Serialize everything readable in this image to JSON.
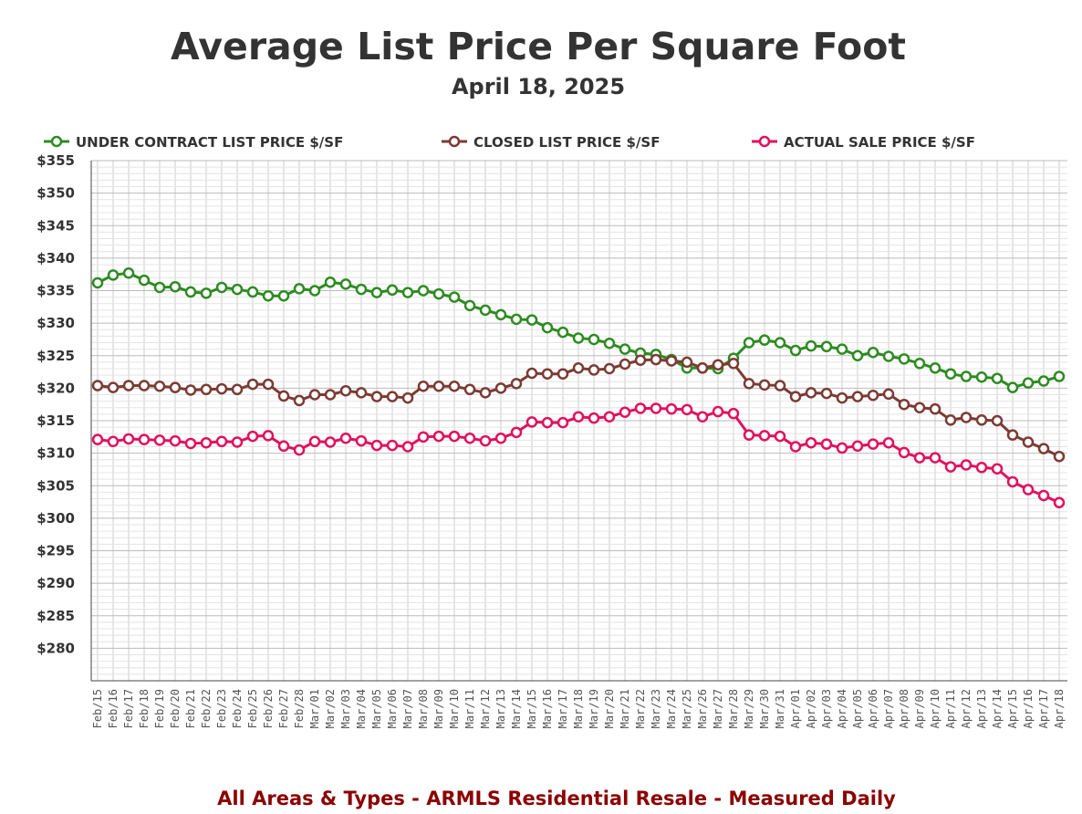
{
  "chart_data": {
    "type": "line",
    "title": "Average List Price Per Square Foot",
    "subtitle": "April 18, 2025",
    "footer": "All Areas & Types - ARMLS Residential Resale - Measured Daily",
    "footer_color": "#8b0000",
    "ylim": [
      275,
      355
    ],
    "yticks": [
      "$355",
      "$350",
      "$345",
      "$340",
      "$335",
      "$330",
      "$325",
      "$320",
      "$315",
      "$310",
      "$305",
      "$300",
      "$295",
      "$290",
      "$285",
      "$280"
    ],
    "ytick_values": [
      355,
      350,
      345,
      340,
      335,
      330,
      325,
      320,
      315,
      310,
      305,
      300,
      295,
      290,
      285,
      280
    ],
    "grid": true,
    "legend_position": "top",
    "categories": [
      "Feb/15",
      "Feb/16",
      "Feb/17",
      "Feb/18",
      "Feb/19",
      "Feb/20",
      "Feb/21",
      "Feb/22",
      "Feb/23",
      "Feb/24",
      "Feb/25",
      "Feb/26",
      "Feb/27",
      "Feb/28",
      "Mar/01",
      "Mar/02",
      "Mar/03",
      "Mar/04",
      "Mar/05",
      "Mar/06",
      "Mar/07",
      "Mar/08",
      "Mar/09",
      "Mar/10",
      "Mar/11",
      "Mar/12",
      "Mar/13",
      "Mar/14",
      "Mar/15",
      "Mar/16",
      "Mar/17",
      "Mar/18",
      "Mar/19",
      "Mar/20",
      "Mar/21",
      "Mar/22",
      "Mar/23",
      "Mar/24",
      "Mar/25",
      "Mar/26",
      "Mar/27",
      "Mar/28",
      "Mar/29",
      "Mar/30",
      "Mar/31",
      "Apr/01",
      "Apr/02",
      "Apr/03",
      "Apr/04",
      "Apr/05",
      "Apr/06",
      "Apr/07",
      "Apr/08",
      "Apr/09",
      "Apr/10",
      "Apr/11",
      "Apr/12",
      "Apr/13",
      "Apr/14",
      "Apr/15",
      "Apr/16",
      "Apr/17",
      "Apr/18"
    ],
    "series": [
      {
        "name": "UNDER CONTRACT LIST PRICE $/SF",
        "color": "#2e8b22",
        "values": [
          336.2,
          337.4,
          337.7,
          336.6,
          335.5,
          335.6,
          334.8,
          334.6,
          335.5,
          335.2,
          334.8,
          334.2,
          334.2,
          335.3,
          335.0,
          336.3,
          336.0,
          335.2,
          334.7,
          335.1,
          334.7,
          335.0,
          334.5,
          334.0,
          332.7,
          332.0,
          331.3,
          330.6,
          330.5,
          329.3,
          328.6,
          327.7,
          327.5,
          326.9,
          326.0,
          325.4,
          325.2,
          324.4,
          323.1,
          323.1,
          323.0,
          324.6,
          327.0,
          327.4,
          327.0,
          325.8,
          326.5,
          326.4,
          326.0,
          325.0,
          325.5,
          324.9,
          324.5,
          323.8,
          323.1,
          322.2,
          321.8,
          321.7,
          321.5,
          320.1,
          320.8,
          321.1,
          321.8
        ]
      },
      {
        "name": "CLOSED LIST PRICE $/SF",
        "color": "#7b3b34",
        "values": [
          320.4,
          320.1,
          320.4,
          320.4,
          320.3,
          320.1,
          319.7,
          319.8,
          319.9,
          319.8,
          320.6,
          320.6,
          318.8,
          318.1,
          319.0,
          319.0,
          319.6,
          319.3,
          318.7,
          318.7,
          318.5,
          320.3,
          320.3,
          320.3,
          319.8,
          319.3,
          320.0,
          320.7,
          322.3,
          322.2,
          322.2,
          323.1,
          322.8,
          323.0,
          323.7,
          324.3,
          324.4,
          324.2,
          324.0,
          323.1,
          323.6,
          323.8,
          320.7,
          320.5,
          320.4,
          318.7,
          319.3,
          319.2,
          318.5,
          318.7,
          318.9,
          319.1,
          317.5,
          317.0,
          316.8,
          315.1,
          315.5,
          315.1,
          315.0,
          312.8,
          311.7,
          310.7,
          309.5
        ]
      },
      {
        "name": "ACTUAL SALE PRICE $/SF",
        "color": "#e0115f",
        "values": [
          312.1,
          311.8,
          312.2,
          312.1,
          312.0,
          311.9,
          311.5,
          311.6,
          311.8,
          311.7,
          312.6,
          312.7,
          311.1,
          310.5,
          311.8,
          311.7,
          312.3,
          311.9,
          311.2,
          311.2,
          311.0,
          312.5,
          312.6,
          312.6,
          312.3,
          311.9,
          312.3,
          313.2,
          314.8,
          314.7,
          314.7,
          315.6,
          315.4,
          315.6,
          316.3,
          316.9,
          316.9,
          316.8,
          316.7,
          315.6,
          316.4,
          316.1,
          312.8,
          312.7,
          312.6,
          311.0,
          311.6,
          311.4,
          310.8,
          311.1,
          311.4,
          311.6,
          310.1,
          309.3,
          309.3,
          307.9,
          308.2,
          307.8,
          307.6,
          305.6,
          304.4,
          303.5,
          302.4
        ]
      }
    ]
  }
}
